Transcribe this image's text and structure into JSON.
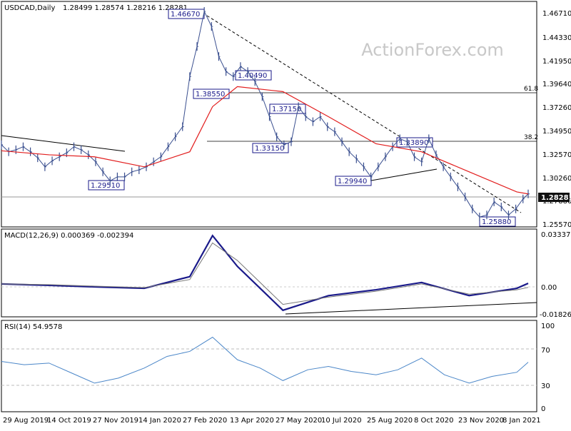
{
  "header": {
    "symbol": "USDCAD,Daily",
    "ohlc": "1.28499 1.28574 1.28216 1.28281"
  },
  "watermark": "ActionForex.com",
  "colors": {
    "price": "#3a4f8f",
    "ma": "#e21d1d",
    "macd": "#1a1a8a",
    "signal": "#777777",
    "rsi": "#4a86c8",
    "annotation_border": "#1a1a8a",
    "current_price_bg": "#111111"
  },
  "chart_data": [
    {
      "type": "line",
      "panel": "price",
      "title": "USDCAD,Daily",
      "y_ticks": [
        "1.46710",
        "1.44330",
        "1.41950",
        "1.39640",
        "1.37260",
        "1.34950",
        "1.32570",
        "1.30260",
        "1.27880",
        "1.25570"
      ],
      "ylim": [
        1.2515,
        1.4735
      ],
      "current_price": "1.28281",
      "x_ticks": [
        "29 Aug 2019",
        "14 Oct 2019",
        "27 Nov 2019",
        "14 Jan 2020",
        "27 Feb 2020",
        "13 Apr 2020",
        "27 May 2020",
        "10 Jul 2020",
        "25 Aug 2020",
        "8 Oct 2020",
        "23 Nov 2020",
        "8 Jan 2021"
      ],
      "series": [
        {
          "style": "bars",
          "x": [
            "2019-08-29",
            "2019-09-05",
            "2019-09-12",
            "2019-09-19",
            "2019-09-26",
            "2019-10-03",
            "2019-10-10",
            "2019-10-17",
            "2019-10-24",
            "2019-10-31",
            "2019-11-07",
            "2019-11-14",
            "2019-11-21",
            "2019-11-28",
            "2019-12-05",
            "2019-12-12",
            "2019-12-19",
            "2019-12-26",
            "2020-01-02",
            "2020-01-09",
            "2020-01-16",
            "2020-01-23",
            "2020-01-30",
            "2020-02-06",
            "2020-02-13",
            "2020-02-20",
            "2020-02-27",
            "2020-03-05",
            "2020-03-12",
            "2020-03-19",
            "2020-03-26",
            "2020-04-02",
            "2020-04-09",
            "2020-04-16",
            "2020-04-23",
            "2020-04-30",
            "2020-05-07",
            "2020-05-14",
            "2020-05-21",
            "2020-05-28",
            "2020-06-04",
            "2020-06-11",
            "2020-06-18",
            "2020-06-25",
            "2020-07-02",
            "2020-07-09",
            "2020-07-16",
            "2020-07-23",
            "2020-07-30",
            "2020-08-06",
            "2020-08-13",
            "2020-08-20",
            "2020-08-27",
            "2020-09-03",
            "2020-09-10",
            "2020-09-17",
            "2020-09-24",
            "2020-10-01",
            "2020-10-08",
            "2020-10-15",
            "2020-10-22",
            "2020-10-29",
            "2020-11-05",
            "2020-11-12",
            "2020-11-19",
            "2020-11-26",
            "2020-12-03",
            "2020-12-10",
            "2020-12-17",
            "2020-12-24",
            "2020-12-31",
            "2021-01-07",
            "2021-01-14",
            "2021-01-19"
          ],
          "values": [
            1.332,
            1.325,
            1.327,
            1.33,
            1.325,
            1.319,
            1.31,
            1.316,
            1.32,
            1.324,
            1.33,
            1.327,
            1.322,
            1.315,
            1.305,
            1.296,
            1.3,
            1.3,
            1.305,
            1.307,
            1.31,
            1.315,
            1.32,
            1.33,
            1.34,
            1.35,
            1.4,
            1.43,
            1.465,
            1.45,
            1.42,
            1.405,
            1.4,
            1.41,
            1.405,
            1.395,
            1.38,
            1.36,
            1.34,
            1.332,
            1.335,
            1.37,
            1.36,
            1.355,
            1.36,
            1.35,
            1.345,
            1.335,
            1.325,
            1.318,
            1.31,
            1.3,
            1.31,
            1.32,
            1.33,
            1.338,
            1.335,
            1.32,
            1.315,
            1.338,
            1.322,
            1.31,
            1.3,
            1.29,
            1.28,
            1.268,
            1.26,
            1.262,
            1.275,
            1.27,
            1.262,
            1.268,
            1.278,
            1.283
          ]
        },
        {
          "style": "line",
          "x": [
            "2019-08-29",
            "2019-10-14",
            "2019-11-27",
            "2020-01-14",
            "2020-02-27",
            "2020-03-20",
            "2020-04-13",
            "2020-05-27",
            "2020-07-10",
            "2020-08-25",
            "2020-10-08",
            "2020-11-23",
            "2021-01-08",
            "2021-01-19"
          ],
          "values": [
            1.326,
            1.322,
            1.32,
            1.31,
            1.325,
            1.37,
            1.39,
            1.385,
            1.36,
            1.333,
            1.325,
            1.305,
            1.285,
            1.283
          ]
        }
      ],
      "annotations": [
        "1.46670",
        "1.40490",
        "1.38550",
        "1.37150",
        "1.33150",
        "1.29510",
        "1.29940",
        "1.33890",
        "1.25880",
        "61.8",
        "38.2"
      ]
    },
    {
      "type": "line",
      "panel": "macd",
      "title": "MACD(12,26,9) 0.000369 -0.002394",
      "y_ticks": [
        "0.03337",
        "0.00",
        "-0.018262"
      ],
      "ylim": [
        -0.0215,
        0.0365
      ],
      "series": [
        {
          "style": "histogram",
          "x": [
            "2019-08-29",
            "2019-10-14",
            "2019-11-27",
            "2020-01-14",
            "2020-02-27",
            "2020-03-20",
            "2020-04-13",
            "2020-05-27",
            "2020-07-10",
            "2020-08-25",
            "2020-10-08",
            "2020-11-23",
            "2021-01-08",
            "2021-01-19"
          ],
          "values": [
            0.0,
            -0.001,
            -0.002,
            -0.003,
            0.005,
            0.033,
            0.012,
            -0.018,
            -0.008,
            -0.004,
            0.001,
            -0.008,
            -0.003,
            0.0004
          ]
        },
        {
          "style": "line",
          "x": [
            "2019-08-29",
            "2019-10-14",
            "2019-11-27",
            "2020-01-14",
            "2020-02-27",
            "2020-03-20",
            "2020-04-13",
            "2020-05-27",
            "2020-07-10",
            "2020-08-25",
            "2020-10-08",
            "2020-11-23",
            "2021-01-08",
            "2021-01-19"
          ],
          "values": [
            0.0,
            -0.0005,
            -0.0015,
            -0.0025,
            0.003,
            0.028,
            0.016,
            -0.014,
            -0.009,
            -0.005,
            0.0,
            -0.007,
            -0.004,
            -0.0024
          ]
        }
      ]
    },
    {
      "type": "line",
      "panel": "rsi",
      "title": "RSI(14) 54.9578",
      "y_ticks": [
        "100",
        "70",
        "30",
        "0"
      ],
      "ylim": [
        0,
        100
      ],
      "series": [
        {
          "style": "line",
          "x": [
            "2019-08-29",
            "2019-09-20",
            "2019-10-14",
            "2019-11-05",
            "2019-11-27",
            "2019-12-20",
            "2020-01-14",
            "2020-02-05",
            "2020-02-27",
            "2020-03-20",
            "2020-04-13",
            "2020-05-05",
            "2020-05-27",
            "2020-06-20",
            "2020-07-10",
            "2020-08-01",
            "2020-08-25",
            "2020-09-15",
            "2020-10-08",
            "2020-10-30",
            "2020-11-23",
            "2020-12-15",
            "2021-01-08",
            "2021-01-19"
          ],
          "values": [
            56,
            52,
            54,
            42,
            30,
            36,
            48,
            62,
            68,
            85,
            58,
            48,
            33,
            46,
            50,
            44,
            40,
            46,
            60,
            40,
            30,
            38,
            43,
            55
          ]
        }
      ]
    }
  ]
}
